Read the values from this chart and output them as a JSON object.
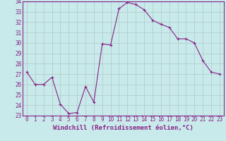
{
  "x": [
    0,
    1,
    2,
    3,
    4,
    5,
    6,
    7,
    8,
    9,
    10,
    11,
    12,
    13,
    14,
    15,
    16,
    17,
    18,
    19,
    20,
    21,
    22,
    23
  ],
  "y": [
    27.2,
    26.0,
    26.0,
    26.7,
    24.1,
    23.2,
    23.3,
    25.8,
    24.3,
    29.9,
    29.8,
    33.3,
    33.9,
    33.7,
    33.2,
    32.2,
    31.8,
    31.5,
    30.4,
    30.4,
    30.0,
    28.3,
    27.2,
    27.0
  ],
  "line_color": "#882288",
  "marker": "+",
  "xlabel": "Windchill (Refroidissement éolien,°C)",
  "ylabel": "",
  "title": "",
  "xlim": [
    -0.5,
    23.5
  ],
  "ylim": [
    23,
    34
  ],
  "yticks": [
    23,
    24,
    25,
    26,
    27,
    28,
    29,
    30,
    31,
    32,
    33,
    34
  ],
  "xticks": [
    0,
    1,
    2,
    3,
    4,
    5,
    6,
    7,
    8,
    9,
    10,
    11,
    12,
    13,
    14,
    15,
    16,
    17,
    18,
    19,
    20,
    21,
    22,
    23
  ],
  "bg_color": "#c8eaea",
  "grid_color": "#b0c8c8",
  "tick_fontsize": 5.5,
  "xlabel_fontsize": 6.5
}
